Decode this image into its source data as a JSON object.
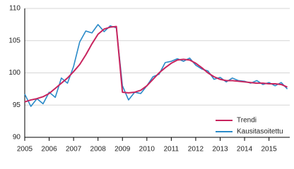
{
  "chart_data": {
    "type": "line",
    "x": [
      2005,
      2005.25,
      2005.5,
      2005.75,
      2006,
      2006.25,
      2006.5,
      2006.75,
      2007,
      2007.25,
      2007.5,
      2007.75,
      2008,
      2008.25,
      2008.5,
      2008.75,
      2009,
      2009.25,
      2009.5,
      2009.75,
      2010,
      2010.25,
      2010.5,
      2010.75,
      2011,
      2011.25,
      2011.5,
      2011.75,
      2012,
      2012.25,
      2012.5,
      2012.75,
      2013,
      2013.25,
      2013.5,
      2013.75,
      2014,
      2014.25,
      2014.5,
      2014.75,
      2015,
      2015.25,
      2015.5,
      2015.75
    ],
    "series": [
      {
        "name": "Trendi",
        "color": "#c8245e",
        "values": [
          95.5,
          95.8,
          96.0,
          96.3,
          96.8,
          97.6,
          98.4,
          99.2,
          100.2,
          101.3,
          102.8,
          104.5,
          106.0,
          106.8,
          107.1,
          107.2,
          97.0,
          96.9,
          97.0,
          97.3,
          98.0,
          99.0,
          100.0,
          100.8,
          101.5,
          102.0,
          102.1,
          102.0,
          101.5,
          100.8,
          100.0,
          99.4,
          99.0,
          98.8,
          98.8,
          98.7,
          98.6,
          98.5,
          98.4,
          98.4,
          98.3,
          98.3,
          98.2,
          97.8
        ]
      },
      {
        "name": "Kausitasoitettu",
        "color": "#2a8ac8",
        "values": [
          96.7,
          94.8,
          96.0,
          95.2,
          97.0,
          96.2,
          99.2,
          98.4,
          101.0,
          104.8,
          106.5,
          106.2,
          107.5,
          106.4,
          107.3,
          107.0,
          98.0,
          95.8,
          97.0,
          96.8,
          98.0,
          99.4,
          99.8,
          101.6,
          101.8,
          102.2,
          101.8,
          102.3,
          101.2,
          100.6,
          100.3,
          99.0,
          99.3,
          98.6,
          99.2,
          98.8,
          98.7,
          98.4,
          98.8,
          98.2,
          98.5,
          98.0,
          98.5,
          97.5
        ]
      }
    ],
    "xlim": [
      2005,
      2015.85
    ],
    "xticks": [
      2005,
      2006,
      2007,
      2008,
      2009,
      2010,
      2011,
      2012,
      2013,
      2014,
      2015
    ],
    "ylim": [
      90,
      110
    ],
    "yticks": [
      90,
      95,
      100,
      105,
      110
    ],
    "grid": true,
    "legend": "lower right"
  }
}
